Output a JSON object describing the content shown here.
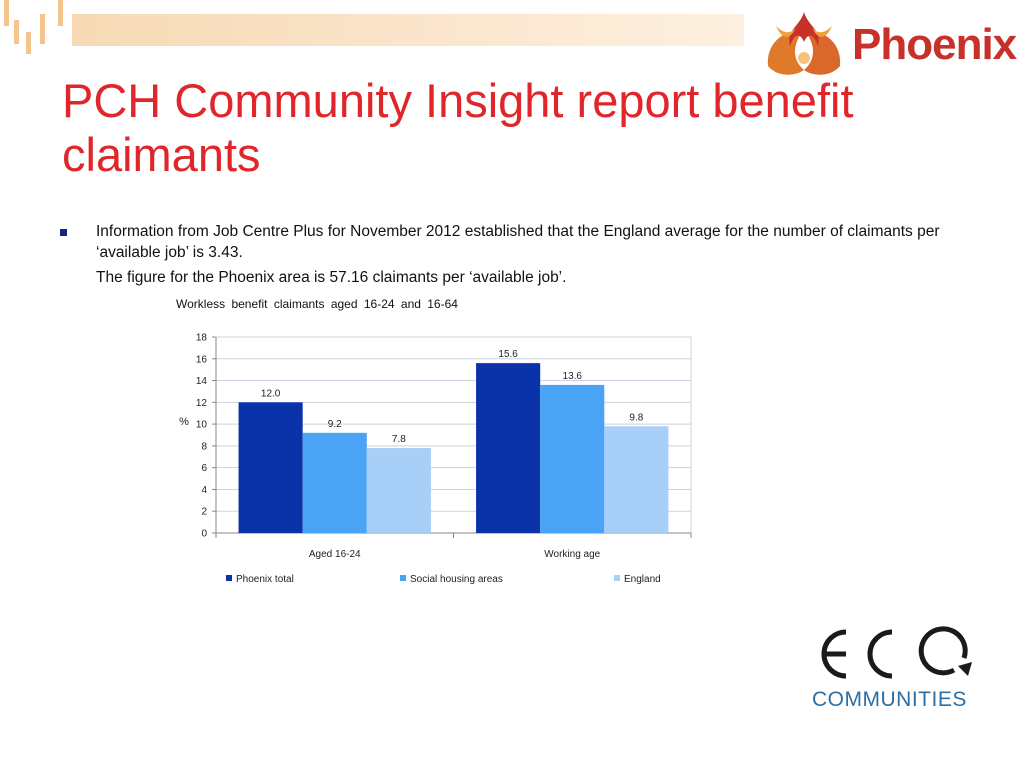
{
  "slide": {
    "title": "PCH Community Insight report benefit claimants",
    "bullet_text": "Information from Job Centre Plus for November 2012 established that the England average for the number of claimants per ‘available job’ is 3.43.",
    "sub_text": "The figure for the Phoenix area is 57.16 claimants per ‘available job’."
  },
  "logos": {
    "phoenix_text": "Phoenix",
    "eco_text": "ECQ",
    "eco_subtext": "COMMUNITIES"
  },
  "colors": {
    "title": "#e0262a",
    "phoenix_total": "#0a33aa",
    "social_housing": "#4aa3f5",
    "england": "#a7cff8"
  },
  "chart_data": {
    "type": "bar",
    "title": "Workless benefit claimants aged 16-24 and 16-64",
    "ylabel": "%",
    "xlabel": "",
    "categories": [
      "Aged 16-24",
      "Working age"
    ],
    "series": [
      {
        "name": "Phoenix total",
        "values": [
          12.0,
          15.6
        ]
      },
      {
        "name": "Social housing areas",
        "values": [
          9.2,
          13.6
        ]
      },
      {
        "name": "England",
        "values": [
          7.8,
          9.8
        ]
      }
    ],
    "data_labels": [
      [
        "12.0",
        "15.6"
      ],
      [
        "9.2",
        "13.6"
      ],
      [
        "7.8",
        "9.8"
      ]
    ],
    "ylim": [
      0,
      18
    ],
    "yticks": [
      "0",
      "2",
      "4",
      "6",
      "8",
      "10",
      "12",
      "14",
      "16",
      "18"
    ],
    "grid": true,
    "legend_position": "bottom"
  }
}
